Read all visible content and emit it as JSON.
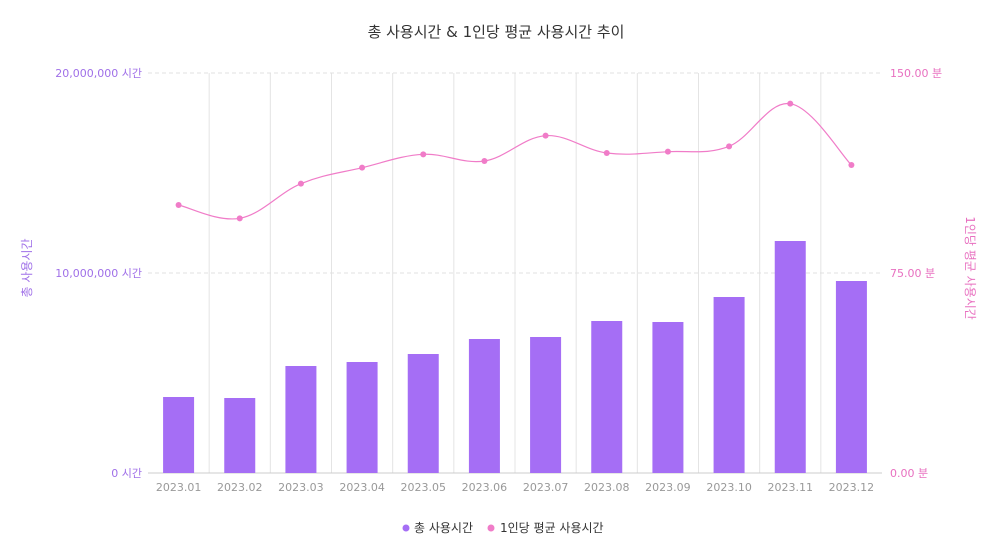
{
  "chart_data": {
    "type": "bar",
    "title": "총 사용시간 & 1인당 평균 사용시간 추이",
    "categories": [
      "2023.01",
      "2023.02",
      "2023.03",
      "2023.04",
      "2023.05",
      "2023.06",
      "2023.07",
      "2023.08",
      "2023.09",
      "2023.10",
      "2023.11",
      "2023.12"
    ],
    "series": [
      {
        "name": "총 사용시간",
        "type": "bar",
        "axis": "left",
        "color": "#a56ef5",
        "values": [
          3800000,
          3750000,
          5350000,
          5550000,
          5950000,
          6700000,
          6800000,
          7600000,
          7550000,
          8800000,
          11600000,
          9600000
        ]
      },
      {
        "name": "1인당 평균 사용시간",
        "type": "line",
        "axis": "right",
        "color": "#f07cc8",
        "values": [
          100.5,
          95.5,
          108.5,
          114.5,
          119.5,
          117.0,
          126.5,
          120.0,
          120.5,
          122.5,
          138.5,
          115.5
        ]
      }
    ],
    "yleft": {
      "label": "총 사용시간",
      "range": [
        0,
        20000000
      ],
      "ticks": [
        "0 시간",
        "10,000,000 시간",
        "20,000,000 시간"
      ]
    },
    "yright": {
      "label": "1인당 평균 사용시간",
      "range": [
        0,
        150
      ],
      "ticks": [
        "0.00 분",
        "75.00 분",
        "150.00 분"
      ]
    },
    "grid": true,
    "legend": "bottom-center"
  }
}
